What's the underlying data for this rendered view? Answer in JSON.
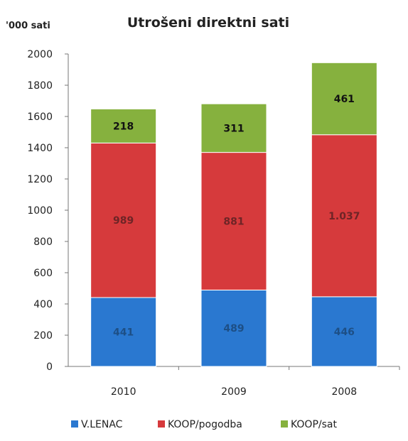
{
  "chart_data": {
    "type": "bar",
    "stacked": true,
    "title": "Utrošeni direktni sati",
    "unit_label": "'000 sati",
    "categories": [
      "2010",
      "2009",
      "2008"
    ],
    "series": [
      {
        "name": "V.LENAC",
        "values": [
          441,
          489,
          446
        ],
        "labels": [
          "441",
          "489",
          "446"
        ],
        "color": "#2a78d0",
        "label_color": "#1d4f86"
      },
      {
        "name": "KOOP/pogodba",
        "values": [
          989,
          881,
          1037
        ],
        "labels": [
          "989",
          "881",
          "1.037"
        ],
        "color": "#d63a3c",
        "label_color": "#6e2426"
      },
      {
        "name": "KOOP/sat",
        "values": [
          218,
          311,
          461
        ],
        "labels": [
          "218",
          "311",
          "461"
        ],
        "color": "#86b13e",
        "label_color": "#111111"
      }
    ],
    "ylim": [
      0,
      2000
    ],
    "yticks": [
      "0",
      "200",
      "400",
      "600",
      "800",
      "1000",
      "1200",
      "1400",
      "1600",
      "1800",
      "2000"
    ],
    "grid": false,
    "legend_position": "bottom"
  }
}
